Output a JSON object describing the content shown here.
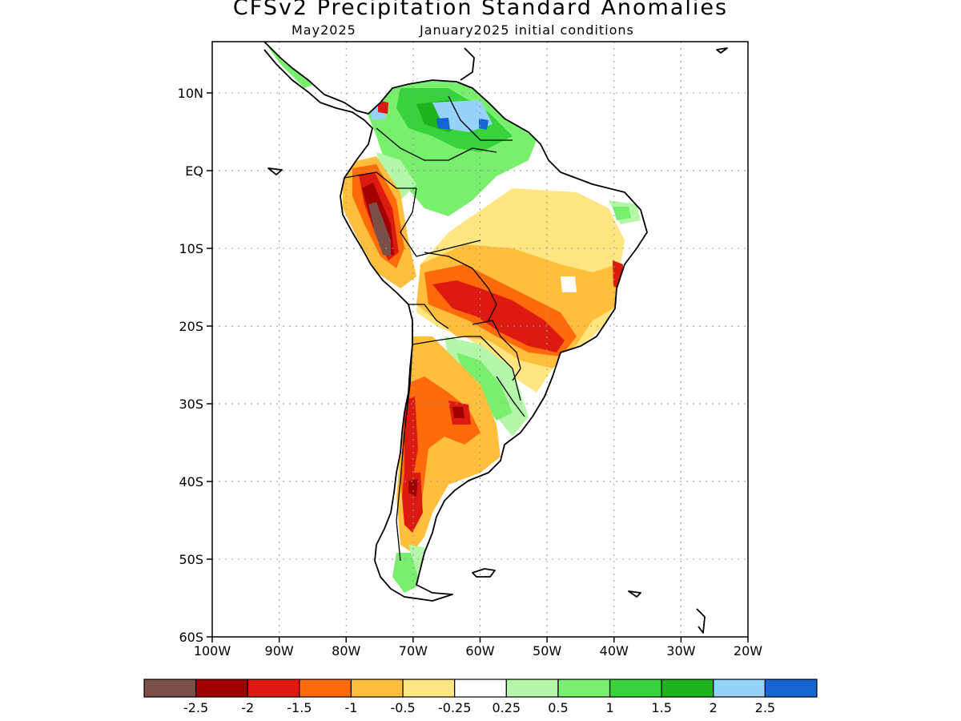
{
  "title": "CFSv2 Precipitation Standard Anomalies",
  "subtitle_left": "May2025",
  "subtitle_right": "January2025 initial conditions",
  "lat_labels": [
    {
      "lat": 10,
      "label": "10N"
    },
    {
      "lat": 0,
      "label": "EQ"
    },
    {
      "lat": -10,
      "label": "10S"
    },
    {
      "lat": -20,
      "label": "20S"
    },
    {
      "lat": -30,
      "label": "30S"
    },
    {
      "lat": -40,
      "label": "40S"
    },
    {
      "lat": -50,
      "label": "50S"
    },
    {
      "lat": -60,
      "label": "60S"
    }
  ],
  "lon_labels": [
    {
      "lon": -100,
      "label": "100W"
    },
    {
      "lon": -90,
      "label": "90W"
    },
    {
      "lon": -80,
      "label": "80W"
    },
    {
      "lon": -70,
      "label": "70W"
    },
    {
      "lon": -60,
      "label": "60W"
    },
    {
      "lon": -50,
      "label": "50W"
    },
    {
      "lon": -40,
      "label": "40W"
    },
    {
      "lon": -30,
      "label": "30W"
    },
    {
      "lon": -20,
      "label": "20W"
    }
  ],
  "colorbar": {
    "colors": [
      "#7a5048",
      "#a00000",
      "#dc1a10",
      "#ff6a0a",
      "#ffbe3c",
      "#ffe680",
      "#ffffff",
      "#b4f7a8",
      "#78f06e",
      "#37d33c",
      "#1eb41e",
      "#96d2fa",
      "#1464d2"
    ],
    "labels": [
      "-2.5",
      "-2",
      "-1.5",
      "-1",
      "-0.5",
      "-0.25",
      "0.25",
      "0.5",
      "1",
      "1.5",
      "2",
      "2.5"
    ]
  },
  "anomaly_colors": {
    "brown": "#7a5048",
    "dark_red": "#a00000",
    "red": "#dc1a10",
    "orange": "#ff6a0a",
    "light_orange": "#ffbe3c",
    "yellow": "#ffe680",
    "light_green": "#b4f7a8",
    "green": "#78f06e",
    "mid_green": "#37d33c",
    "dark_green": "#1eb41e",
    "light_blue": "#96d2fa",
    "blue": "#1464d2"
  }
}
